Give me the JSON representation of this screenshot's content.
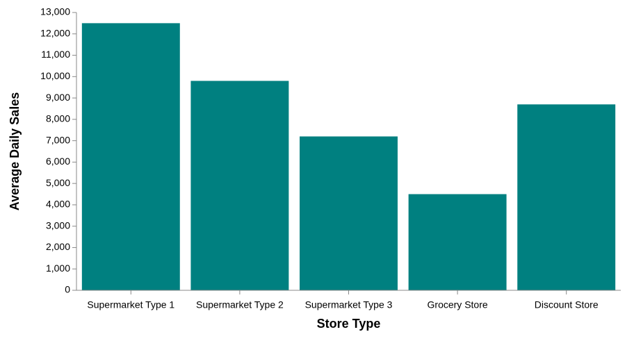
{
  "chart_data": {
    "type": "bar",
    "title": "",
    "xlabel": "Store Type",
    "ylabel": "Average Daily Sales",
    "categories": [
      "Supermarket Type 1",
      "Supermarket Type 2",
      "Supermarket Type 3",
      "Grocery Store",
      "Discount Store"
    ],
    "values": [
      12500,
      9800,
      7200,
      4500,
      8700
    ],
    "ylim": [
      0,
      13000
    ],
    "yticks": [
      0,
      1000,
      2000,
      3000,
      4000,
      5000,
      6000,
      7000,
      8000,
      9000,
      10000,
      11000,
      12000,
      13000
    ],
    "ytick_labels": [
      "0",
      "1,000",
      "2,000",
      "3,000",
      "4,000",
      "5,000",
      "6,000",
      "7,000",
      "8,000",
      "9,000",
      "10,000",
      "11,000",
      "12,000",
      "13,000"
    ],
    "bar_color": "#008080",
    "grid": false,
    "legend": "none"
  }
}
